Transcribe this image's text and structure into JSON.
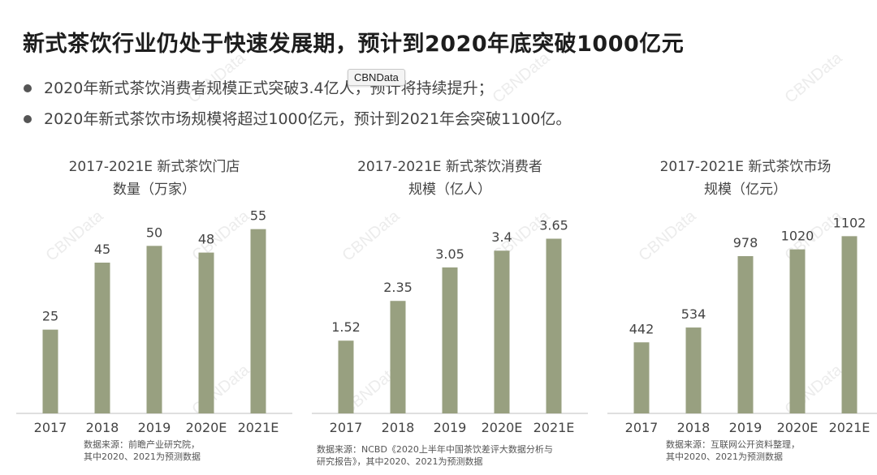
{
  "title": "新式茶饮行业仍处于快速发展期，预计到2020年底突破1000亿元",
  "bullets": [
    "2020年新式茶饮消费者规模正式突破3.4亿人，预计将持续提升；",
    "2020年新式茶饮市场规模将超过1000亿元，预计到2021年会突破1100亿。"
  ],
  "tooltip": "CBNData",
  "watermark": "CBNData",
  "colors": {
    "bar": "#98a080",
    "axis": "#bfbfbf"
  },
  "chart_data": [
    {
      "type": "bar",
      "title_lines": [
        "2017-2021E 新式茶饮门店",
        "数量（万家）"
      ],
      "categories": [
        "2017",
        "2018",
        "2019",
        "2020E",
        "2021E"
      ],
      "values": [
        25,
        45,
        50,
        48,
        55
      ],
      "value_labels": [
        "25",
        "45",
        "50",
        "48",
        "55"
      ],
      "ylim": [
        0,
        60
      ],
      "source_lines": [
        "数据来源：前瞻产业研究院，",
        "其中2020、2021为预测数据"
      ]
    },
    {
      "type": "bar",
      "title_lines": [
        "2017-2021E 新式茶饮消费者",
        "规模（亿人）"
      ],
      "categories": [
        "2017",
        "2018",
        "2019",
        "2020E",
        "2021E"
      ],
      "values": [
        1.52,
        2.35,
        3.05,
        3.4,
        3.65
      ],
      "value_labels": [
        "1.52",
        "2.35",
        "3.05",
        "3.4",
        "3.65"
      ],
      "ylim": [
        0,
        4.2
      ],
      "source_lines": [
        "数据来源：NCBD《2020上半年中国茶饮差评大数据分析与",
        "研究报告》，其中2020、2021为预测数据"
      ]
    },
    {
      "type": "bar",
      "title_lines": [
        "2017-2021E 新式茶饮市场",
        "规模（亿元）"
      ],
      "categories": [
        "2017",
        "2018",
        "2019",
        "2020E",
        "2021E"
      ],
      "values": [
        442,
        534,
        978,
        1020,
        1102
      ],
      "value_labels": [
        "442",
        "534",
        "978",
        "1020",
        "1102"
      ],
      "ylim": [
        0,
        1250
      ],
      "source_lines": [
        "数据来源：互联网公开资料整理，",
        "其中2020、2021为预测数据"
      ]
    }
  ]
}
